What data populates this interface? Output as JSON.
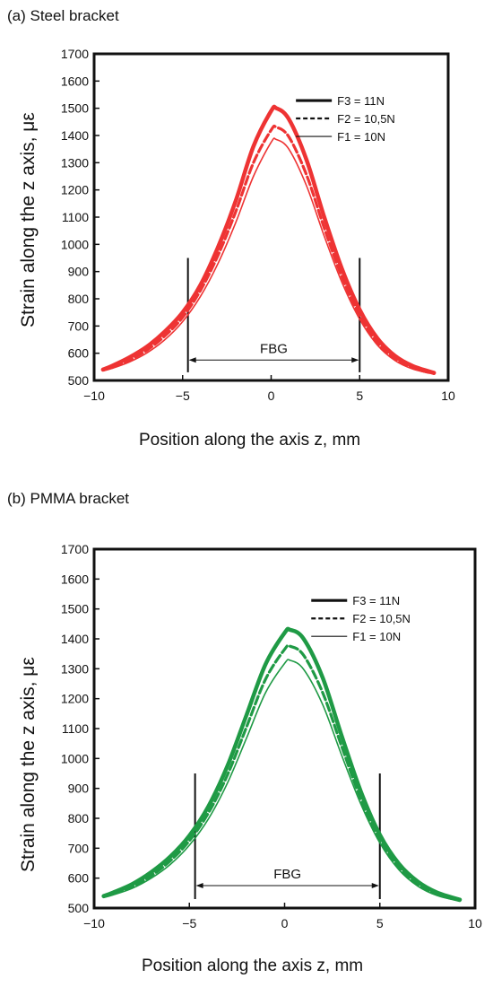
{
  "chart_data": [
    {
      "type": "line",
      "panel_title": "(a) Steel bracket",
      "xlabel": "Position along the axis z, mm",
      "ylabel": "Strain along the z axis, με",
      "xlim": [
        -10,
        10
      ],
      "ylim": [
        500,
        1700
      ],
      "x_ticks": [
        "−10",
        "−5",
        "0",
        "5",
        "10"
      ],
      "y_ticks": [
        "500",
        "600",
        "700",
        "800",
        "900",
        "1000",
        "1100",
        "1200",
        "1300",
        "1400",
        "1500",
        "1600",
        "1700"
      ],
      "color": "#ee3333",
      "fbg": {
        "label": "FBG",
        "from": -4.7,
        "to": 5.0
      },
      "x": [
        -9.5,
        -9.0,
        -8.0,
        -7.0,
        -6.0,
        -5.0,
        -4.0,
        -3.0,
        -2.0,
        -1.0,
        0.0,
        0.3,
        1.0,
        2.0,
        3.0,
        4.0,
        5.0,
        6.0,
        7.0,
        8.0,
        9.2
      ],
      "series": [
        {
          "name": "F3 = 11N",
          "style": "solid-thick",
          "values": [
            540,
            553,
            585,
            625,
            680,
            750,
            850,
            990,
            1160,
            1360,
            1490,
            1500,
            1460,
            1310,
            1100,
            910,
            760,
            655,
            590,
            553,
            528
          ]
        },
        {
          "name": "F2 = 10,5N",
          "style": "dashed",
          "values": [
            538,
            548,
            575,
            612,
            664,
            732,
            830,
            960,
            1120,
            1300,
            1420,
            1430,
            1395,
            1255,
            1060,
            880,
            740,
            640,
            580,
            546,
            525
          ]
        },
        {
          "name": "F1 = 10N",
          "style": "solid-thin",
          "values": [
            535,
            544,
            568,
            602,
            650,
            716,
            808,
            930,
            1080,
            1250,
            1375,
            1385,
            1350,
            1215,
            1030,
            860,
            725,
            630,
            573,
            542,
            523
          ]
        }
      ]
    },
    {
      "type": "line",
      "panel_title": "(b) PMMA bracket",
      "xlabel": "Position along the axis z, mm",
      "ylabel": "Strain along the z axis, με",
      "xlim": [
        -10,
        10
      ],
      "ylim": [
        500,
        1700
      ],
      "x_ticks": [
        "−10",
        "−5",
        "0",
        "5",
        "10"
      ],
      "y_ticks": [
        "500",
        "600",
        "700",
        "800",
        "900",
        "1000",
        "1100",
        "1200",
        "1300",
        "1400",
        "1500",
        "1600",
        "1700"
      ],
      "color": "#1f9a45",
      "fbg": {
        "label": "FBG",
        "from": -4.7,
        "to": 5.0
      },
      "x": [
        -9.5,
        -9.0,
        -8.0,
        -7.0,
        -6.0,
        -5.0,
        -4.0,
        -3.0,
        -2.0,
        -1.0,
        0.0,
        0.3,
        1.0,
        2.0,
        3.0,
        4.0,
        5.0,
        6.0,
        7.0,
        8.0,
        9.2
      ],
      "series": [
        {
          "name": "F3 = 11N",
          "style": "solid-thick",
          "values": [
            540,
            552,
            580,
            620,
            672,
            742,
            840,
            975,
            1145,
            1315,
            1420,
            1430,
            1400,
            1270,
            1075,
            890,
            745,
            648,
            588,
            552,
            528
          ]
        },
        {
          "name": "F2 = 10,5N",
          "style": "dashed",
          "values": [
            538,
            548,
            572,
            608,
            658,
            725,
            818,
            945,
            1105,
            1265,
            1365,
            1375,
            1345,
            1220,
            1040,
            865,
            730,
            638,
            580,
            546,
            525
          ]
        },
        {
          "name": "F1 = 10N",
          "style": "solid-thin",
          "values": [
            535,
            544,
            566,
            600,
            646,
            710,
            798,
            918,
            1068,
            1220,
            1318,
            1328,
            1298,
            1180,
            1010,
            848,
            718,
            628,
            573,
            542,
            523
          ]
        }
      ]
    }
  ]
}
